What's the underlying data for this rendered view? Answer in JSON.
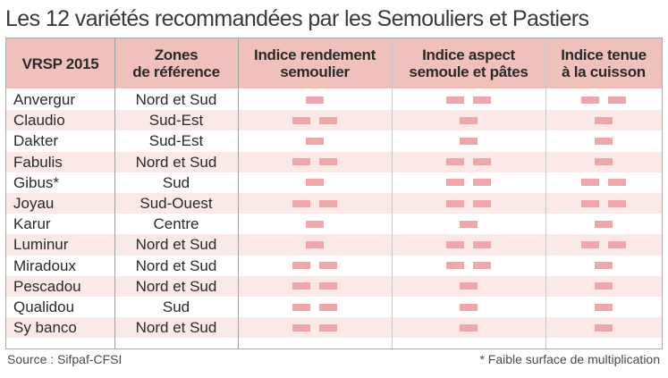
{
  "title": "Les 12 variétés recommandées par les Semouliers et Pastiers",
  "colors": {
    "header_bg": "#f0c0bc",
    "row_shade": "#fbe9e7",
    "bar": "#f0a7ab"
  },
  "table": {
    "headers": {
      "variety": "VRSP 2015",
      "zones_line1": "Zones",
      "zones_line2": "de référence",
      "yield_line1": "Indice rendement",
      "yield_line2": "semoulier",
      "aspect_line1": "Indice aspect",
      "aspect_line2": "semoule et pâtes",
      "cooking_line1": "Indice tenue",
      "cooking_line2": "à la cuisson"
    },
    "rows": [
      {
        "name": "Anvergur",
        "zone": "Nord et Sud",
        "yield_level": 1,
        "aspect_level": 2,
        "cooking_level": 2
      },
      {
        "name": "Claudio",
        "zone": "Sud-Est",
        "yield_level": 2,
        "aspect_level": 1,
        "cooking_level": 1
      },
      {
        "name": "Dakter",
        "zone": "Sud-Est",
        "yield_level": 1,
        "aspect_level": 1,
        "cooking_level": 1
      },
      {
        "name": "Fabulis",
        "zone": "Nord et Sud",
        "yield_level": 2,
        "aspect_level": 2,
        "cooking_level": 1
      },
      {
        "name": "Gibus*",
        "zone": "Sud",
        "yield_level": 1,
        "aspect_level": 2,
        "cooking_level": 2
      },
      {
        "name": "Joyau",
        "zone": "Sud-Ouest",
        "yield_level": 2,
        "aspect_level": 2,
        "cooking_level": 2
      },
      {
        "name": "Karur",
        "zone": "Centre",
        "yield_level": 1,
        "aspect_level": 1,
        "cooking_level": 1
      },
      {
        "name": "Luminur",
        "zone": "Nord et Sud",
        "yield_level": 1,
        "aspect_level": 2,
        "cooking_level": 2
      },
      {
        "name": "Miradoux",
        "zone": "Nord et Sud",
        "yield_level": 2,
        "aspect_level": 2,
        "cooking_level": 1
      },
      {
        "name": "Pescadou",
        "zone": "Nord et Sud",
        "yield_level": 2,
        "aspect_level": 1,
        "cooking_level": 1
      },
      {
        "name": "Qualidou",
        "zone": "Sud",
        "yield_level": 2,
        "aspect_level": 1,
        "cooking_level": 1
      },
      {
        "name": "Sy banco",
        "zone": "Nord et Sud",
        "yield_level": 2,
        "aspect_level": 1,
        "cooking_level": 1
      }
    ]
  },
  "source": "Source : Sifpaf-CFSI",
  "footnote": "* Faible surface de multiplication"
}
